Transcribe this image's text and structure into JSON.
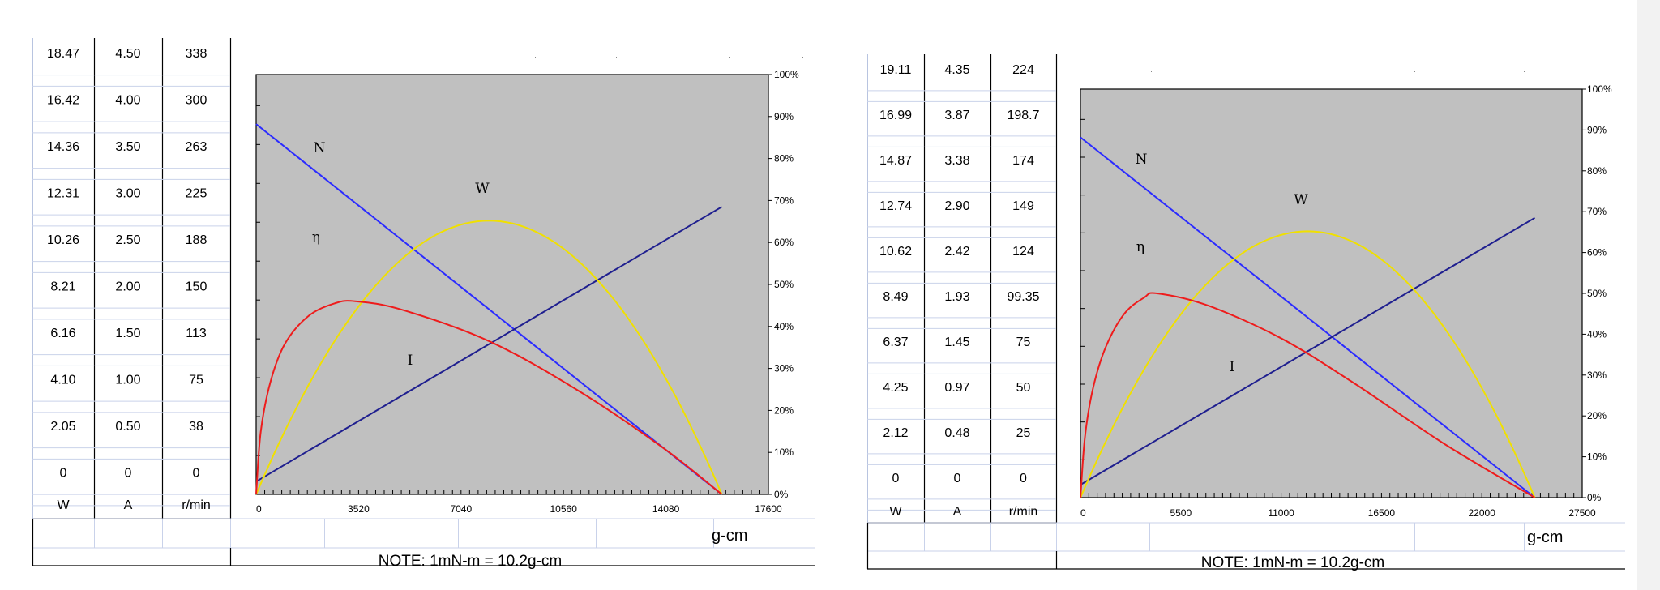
{
  "chart_data": [
    {
      "type": "line",
      "title": "",
      "xlabel": "g-cm",
      "x_ticks": [
        0,
        3520,
        7040,
        10560,
        14080,
        17600
      ],
      "xlim": [
        0,
        17600
      ],
      "right_axis_ticks": [
        "0%",
        "10%",
        "20%",
        "30%",
        "40%",
        "50%",
        "60%",
        "70%",
        "80%",
        "90%",
        "100%"
      ],
      "ylim_percent": [
        0,
        100
      ],
      "note": "NOTE: 1mN-m = 10.2g-cm",
      "table": {
        "W": [
          "18.47",
          "16.42",
          "14.36",
          "12.31",
          "10.26",
          "8.21",
          "6.16",
          "4.10",
          "2.05",
          "0"
        ],
        "A": [
          "4.50",
          "4.00",
          "3.50",
          "3.00",
          "2.50",
          "2.00",
          "1.50",
          "1.00",
          "0.50",
          "0"
        ],
        "r/min": [
          "338",
          "300",
          "263",
          "225",
          "188",
          "150",
          "113",
          "75",
          "38",
          "0"
        ],
        "headers": [
          "W",
          "A",
          "r/min"
        ]
      },
      "series": [
        {
          "name": "N",
          "color": "#2b2bff",
          "x": [
            0,
            16000
          ],
          "y": [
            338,
            0
          ]
        },
        {
          "name": "I",
          "color": "#1f1f8f",
          "x": [
            0,
            16000
          ],
          "y": [
            0.2,
            4.5
          ]
        },
        {
          "name": "W",
          "color": "#f0e000",
          "x": [
            0,
            8000,
            16000
          ],
          "y": [
            0,
            18.47,
            0
          ]
        },
        {
          "name": "η",
          "color": "#ee1c1c",
          "x": [
            0,
            160,
            500,
            1000,
            1800,
            2700,
            3400,
            5000,
            8000,
            11000,
            14000,
            16000
          ],
          "y": [
            0,
            15,
            27,
            36,
            42.5,
            45.5,
            46,
            44,
            36.5,
            25,
            11,
            0
          ]
        }
      ],
      "labels": {
        "N": "N",
        "W": "W",
        "eta": "η",
        "I": "I"
      }
    },
    {
      "type": "line",
      "title": "",
      "xlabel": "g-cm",
      "x_ticks": [
        0,
        5500,
        11000,
        16500,
        22000,
        27500
      ],
      "xlim": [
        0,
        27500
      ],
      "right_axis_ticks": [
        "0%",
        "10%",
        "20%",
        "30%",
        "40%",
        "50%",
        "60%",
        "70%",
        "80%",
        "90%",
        "100%"
      ],
      "ylim_percent": [
        0,
        100
      ],
      "note": "NOTE: 1mN-m = 10.2g-cm",
      "table": {
        "W": [
          "19.11",
          "16.99",
          "14.87",
          "12.74",
          "10.62",
          "8.49",
          "6.37",
          "4.25",
          "2.12",
          "0"
        ],
        "A": [
          "4.35",
          "3.87",
          "3.38",
          "2.90",
          "2.42",
          "1.93",
          "1.45",
          "0.97",
          "0.48",
          "0"
        ],
        "r/min": [
          "224",
          "198.7",
          "174",
          "149",
          "124",
          "99.35",
          "75",
          "50",
          "25",
          "0"
        ],
        "headers": [
          "W",
          "A",
          "r/min"
        ]
      },
      "series": [
        {
          "name": "N",
          "color": "#2b2bff",
          "x": [
            0,
            24900
          ],
          "y": [
            224,
            0
          ]
        },
        {
          "name": "I",
          "color": "#1f1f8f",
          "x": [
            0,
            24900
          ],
          "y": [
            0.2,
            4.35
          ]
        },
        {
          "name": "W",
          "color": "#f0e000",
          "x": [
            0,
            12450,
            24900
          ],
          "y": [
            0,
            19.11,
            0
          ]
        },
        {
          "name": "η",
          "color": "#ee1c1c",
          "x": [
            0,
            250,
            700,
            1400,
            2400,
            3500,
            4200,
            7000,
            11000,
            15000,
            20000,
            24900
          ],
          "y": [
            0,
            15,
            27,
            37,
            45,
            49,
            50,
            47,
            39,
            28,
            13,
            0
          ]
        }
      ],
      "labels": {
        "N": "N",
        "W": "W",
        "eta": "η",
        "I": "I"
      }
    }
  ]
}
